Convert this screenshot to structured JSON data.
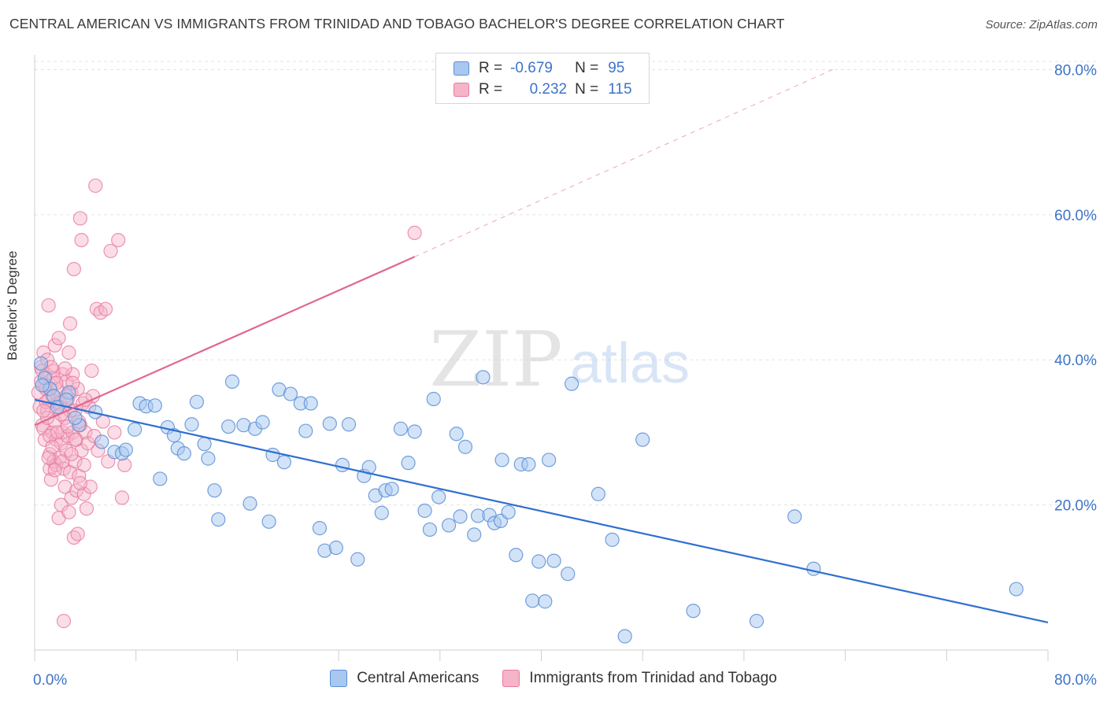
{
  "title": "CENTRAL AMERICAN VS IMMIGRANTS FROM TRINIDAD AND TOBAGO BACHELOR'S DEGREE CORRELATION CHART",
  "source": "Source: ZipAtlas.com",
  "watermark": {
    "zip": "ZIP",
    "atlas": "atlas"
  },
  "legend": {
    "r_label": "R =",
    "n_label": "N =",
    "rows": [
      {
        "r": "-0.679",
        "n": "95"
      },
      {
        "r": "0.232",
        "n": "115"
      }
    ]
  },
  "colors": {
    "blue_fill": "#a8c8f0",
    "blue_stroke": "#5b8fd6",
    "blue_line": "#2f6fd0",
    "pink_fill": "#f5b4c8",
    "pink_stroke": "#e87aa0",
    "pink_line": "#e06890",
    "axis_text": "#3d73c8"
  },
  "chart_data": {
    "type": "scatter",
    "title": "CENTRAL AMERICAN VS IMMIGRANTS FROM TRINIDAD AND TOBAGO BACHELOR'S DEGREE CORRELATION CHART",
    "xlabel": "",
    "ylabel": "Bachelor's Degree",
    "xlim": [
      0,
      80
    ],
    "ylim": [
      0,
      82
    ],
    "x_tick_labels": [
      "0.0%",
      "80.0%"
    ],
    "y_ticks": [
      20,
      40,
      60,
      80
    ],
    "y_tick_labels": [
      "20.0%",
      "40.0%",
      "60.0%",
      "80.0%"
    ],
    "grid": true,
    "legend_position": "top-center",
    "series": [
      {
        "name": "Central Americans",
        "color": "#a8c8f0",
        "trend": {
          "x": [
            0,
            80
          ],
          "y": [
            34.5,
            3.8
          ],
          "style": "solid"
        },
        "points": [
          [
            0.5,
            39.5
          ],
          [
            0.8,
            37.5
          ],
          [
            1.2,
            36.0
          ],
          [
            1.5,
            35.0
          ],
          [
            0.6,
            36.5
          ],
          [
            1.8,
            33.5
          ],
          [
            2.7,
            35.5
          ],
          [
            2.5,
            34.5
          ],
          [
            3.5,
            31.0
          ],
          [
            3.2,
            32.0
          ],
          [
            4.8,
            32.8
          ],
          [
            5.3,
            28.7
          ],
          [
            6.3,
            27.3
          ],
          [
            6.9,
            27.1
          ],
          [
            7.2,
            27.6
          ],
          [
            7.9,
            30.4
          ],
          [
            8.3,
            34.0
          ],
          [
            8.8,
            33.6
          ],
          [
            9.5,
            33.7
          ],
          [
            9.9,
            23.6
          ],
          [
            10.5,
            30.7
          ],
          [
            11.0,
            29.6
          ],
          [
            11.3,
            27.8
          ],
          [
            11.8,
            27.1
          ],
          [
            12.4,
            31.1
          ],
          [
            12.8,
            34.2
          ],
          [
            13.4,
            28.4
          ],
          [
            13.7,
            26.4
          ],
          [
            14.2,
            22.0
          ],
          [
            14.5,
            18.0
          ],
          [
            15.3,
            30.8
          ],
          [
            15.6,
            37.0
          ],
          [
            16.5,
            31.0
          ],
          [
            17.0,
            20.2
          ],
          [
            17.4,
            30.5
          ],
          [
            18.0,
            31.4
          ],
          [
            18.5,
            17.7
          ],
          [
            18.8,
            26.9
          ],
          [
            19.3,
            35.9
          ],
          [
            19.7,
            25.9
          ],
          [
            20.2,
            35.3
          ],
          [
            21.0,
            34.0
          ],
          [
            21.4,
            30.2
          ],
          [
            21.8,
            34.0
          ],
          [
            22.5,
            16.8
          ],
          [
            22.9,
            13.7
          ],
          [
            23.3,
            31.2
          ],
          [
            23.8,
            14.1
          ],
          [
            24.3,
            25.5
          ],
          [
            24.8,
            31.1
          ],
          [
            25.5,
            12.5
          ],
          [
            26.0,
            24.0
          ],
          [
            26.4,
            25.2
          ],
          [
            26.9,
            21.3
          ],
          [
            27.4,
            18.9
          ],
          [
            27.7,
            22.0
          ],
          [
            28.2,
            22.2
          ],
          [
            28.9,
            30.5
          ],
          [
            29.5,
            25.8
          ],
          [
            30.0,
            30.1
          ],
          [
            30.8,
            19.2
          ],
          [
            31.2,
            16.6
          ],
          [
            31.5,
            34.6
          ],
          [
            31.9,
            21.1
          ],
          [
            32.7,
            17.2
          ],
          [
            33.3,
            29.8
          ],
          [
            33.6,
            18.4
          ],
          [
            34.0,
            28.0
          ],
          [
            34.7,
            15.9
          ],
          [
            35.0,
            18.5
          ],
          [
            35.4,
            37.6
          ],
          [
            35.9,
            18.6
          ],
          [
            36.3,
            17.5
          ],
          [
            36.8,
            17.8
          ],
          [
            36.9,
            26.2
          ],
          [
            37.4,
            19.0
          ],
          [
            38.0,
            13.1
          ],
          [
            38.4,
            25.6
          ],
          [
            39.0,
            25.6
          ],
          [
            39.3,
            6.8
          ],
          [
            39.8,
            12.2
          ],
          [
            40.3,
            6.7
          ],
          [
            40.6,
            26.2
          ],
          [
            41.0,
            12.3
          ],
          [
            42.1,
            10.5
          ],
          [
            42.4,
            36.7
          ],
          [
            44.5,
            21.5
          ],
          [
            45.6,
            15.2
          ],
          [
            46.6,
            1.9
          ],
          [
            48.0,
            29.0
          ],
          [
            52.0,
            5.4
          ],
          [
            57.0,
            4.0
          ],
          [
            60.0,
            18.4
          ],
          [
            61.5,
            11.2
          ],
          [
            77.5,
            8.4
          ]
        ]
      },
      {
        "name": "Immigrants from Trinidad and Tobago",
        "color": "#f5b4c8",
        "trend": {
          "x": [
            0,
            30
          ],
          "y": [
            31.0,
            54.2
          ],
          "style": "solid",
          "extended": {
            "x": [
              30,
              63
            ],
            "y": [
              54.2,
              80.0
            ],
            "style": "dashed"
          }
        },
        "points": [
          [
            0.3,
            35.5
          ],
          [
            0.4,
            33.5
          ],
          [
            0.5,
            37.0
          ],
          [
            0.5,
            39.0
          ],
          [
            0.6,
            31.0
          ],
          [
            0.7,
            30.5
          ],
          [
            0.7,
            41.0
          ],
          [
            0.8,
            29.0
          ],
          [
            0.9,
            36.0
          ],
          [
            0.9,
            38.0
          ],
          [
            1.0,
            33.0
          ],
          [
            1.0,
            40.0
          ],
          [
            1.1,
            34.5
          ],
          [
            1.1,
            47.5
          ],
          [
            1.2,
            25.0
          ],
          [
            1.2,
            27.0
          ],
          [
            1.3,
            23.5
          ],
          [
            1.3,
            36.5
          ],
          [
            1.4,
            35.0
          ],
          [
            1.4,
            30.0
          ],
          [
            1.5,
            26.0
          ],
          [
            1.5,
            38.5
          ],
          [
            1.6,
            42.0
          ],
          [
            1.6,
            31.5
          ],
          [
            1.7,
            29.0
          ],
          [
            1.7,
            25.5
          ],
          [
            1.8,
            34.0
          ],
          [
            1.8,
            36.0
          ],
          [
            1.9,
            18.2
          ],
          [
            1.9,
            43.0
          ],
          [
            2.0,
            26.5
          ],
          [
            2.0,
            33.5
          ],
          [
            2.1,
            28.5
          ],
          [
            2.1,
            20.0
          ],
          [
            2.2,
            38.0
          ],
          [
            2.2,
            30.0
          ],
          [
            2.3,
            25.0
          ],
          [
            2.4,
            32.0
          ],
          [
            2.4,
            22.5
          ],
          [
            2.5,
            37.0
          ],
          [
            2.5,
            27.5
          ],
          [
            2.6,
            34.5
          ],
          [
            2.6,
            29.5
          ],
          [
            2.7,
            19.0
          ],
          [
            2.7,
            41.0
          ],
          [
            2.8,
            45.0
          ],
          [
            2.8,
            24.5
          ],
          [
            2.9,
            35.5
          ],
          [
            2.9,
            21.0
          ],
          [
            3.0,
            30.0
          ],
          [
            3.0,
            38.0
          ],
          [
            3.1,
            15.5
          ],
          [
            3.1,
            52.5
          ],
          [
            3.2,
            26.0
          ],
          [
            3.2,
            33.0
          ],
          [
            3.3,
            22.0
          ],
          [
            3.3,
            29.0
          ],
          [
            3.4,
            16.0
          ],
          [
            3.4,
            36.0
          ],
          [
            3.5,
            24.0
          ],
          [
            3.6,
            31.0
          ],
          [
            3.6,
            59.5
          ],
          [
            3.7,
            27.5
          ],
          [
            3.7,
            56.5
          ],
          [
            3.8,
            34.0
          ],
          [
            3.9,
            21.5
          ],
          [
            3.9,
            25.5
          ],
          [
            4.0,
            30.0
          ],
          [
            4.1,
            19.5
          ],
          [
            4.2,
            28.5
          ],
          [
            4.3,
            33.5
          ],
          [
            4.4,
            22.5
          ],
          [
            4.5,
            38.5
          ],
          [
            4.6,
            35.0
          ],
          [
            4.7,
            29.5
          ],
          [
            4.8,
            64.0
          ],
          [
            4.9,
            47.0
          ],
          [
            5.0,
            27.5
          ],
          [
            5.2,
            46.5
          ],
          [
            5.4,
            31.5
          ],
          [
            5.6,
            47.0
          ],
          [
            5.8,
            26.0
          ],
          [
            6.0,
            55.0
          ],
          [
            6.3,
            30.0
          ],
          [
            6.6,
            56.5
          ],
          [
            6.9,
            21.0
          ],
          [
            7.1,
            25.5
          ],
          [
            2.3,
            4.0
          ],
          [
            1.0,
            32.0
          ],
          [
            0.8,
            36.5
          ],
          [
            1.5,
            37.5
          ],
          [
            2.0,
            34.0
          ],
          [
            2.5,
            35.0
          ],
          [
            1.2,
            29.5
          ],
          [
            1.8,
            30.0
          ],
          [
            2.2,
            26.0
          ],
          [
            3.5,
            31.5
          ],
          [
            4.0,
            34.5
          ],
          [
            0.6,
            38.5
          ],
          [
            1.3,
            39.0
          ],
          [
            2.8,
            33.0
          ],
          [
            3.2,
            29.0
          ],
          [
            1.7,
            36.8
          ],
          [
            0.9,
            34.2
          ],
          [
            2.4,
            38.8
          ],
          [
            1.1,
            26.5
          ],
          [
            0.7,
            33.0
          ],
          [
            2.1,
            32.5
          ],
          [
            3.0,
            36.8
          ],
          [
            1.6,
            24.8
          ],
          [
            2.6,
            30.8
          ],
          [
            1.4,
            28.0
          ],
          [
            2.9,
            27.0
          ],
          [
            30.0,
            57.5
          ],
          [
            3.6,
            23.0
          ]
        ]
      }
    ]
  }
}
